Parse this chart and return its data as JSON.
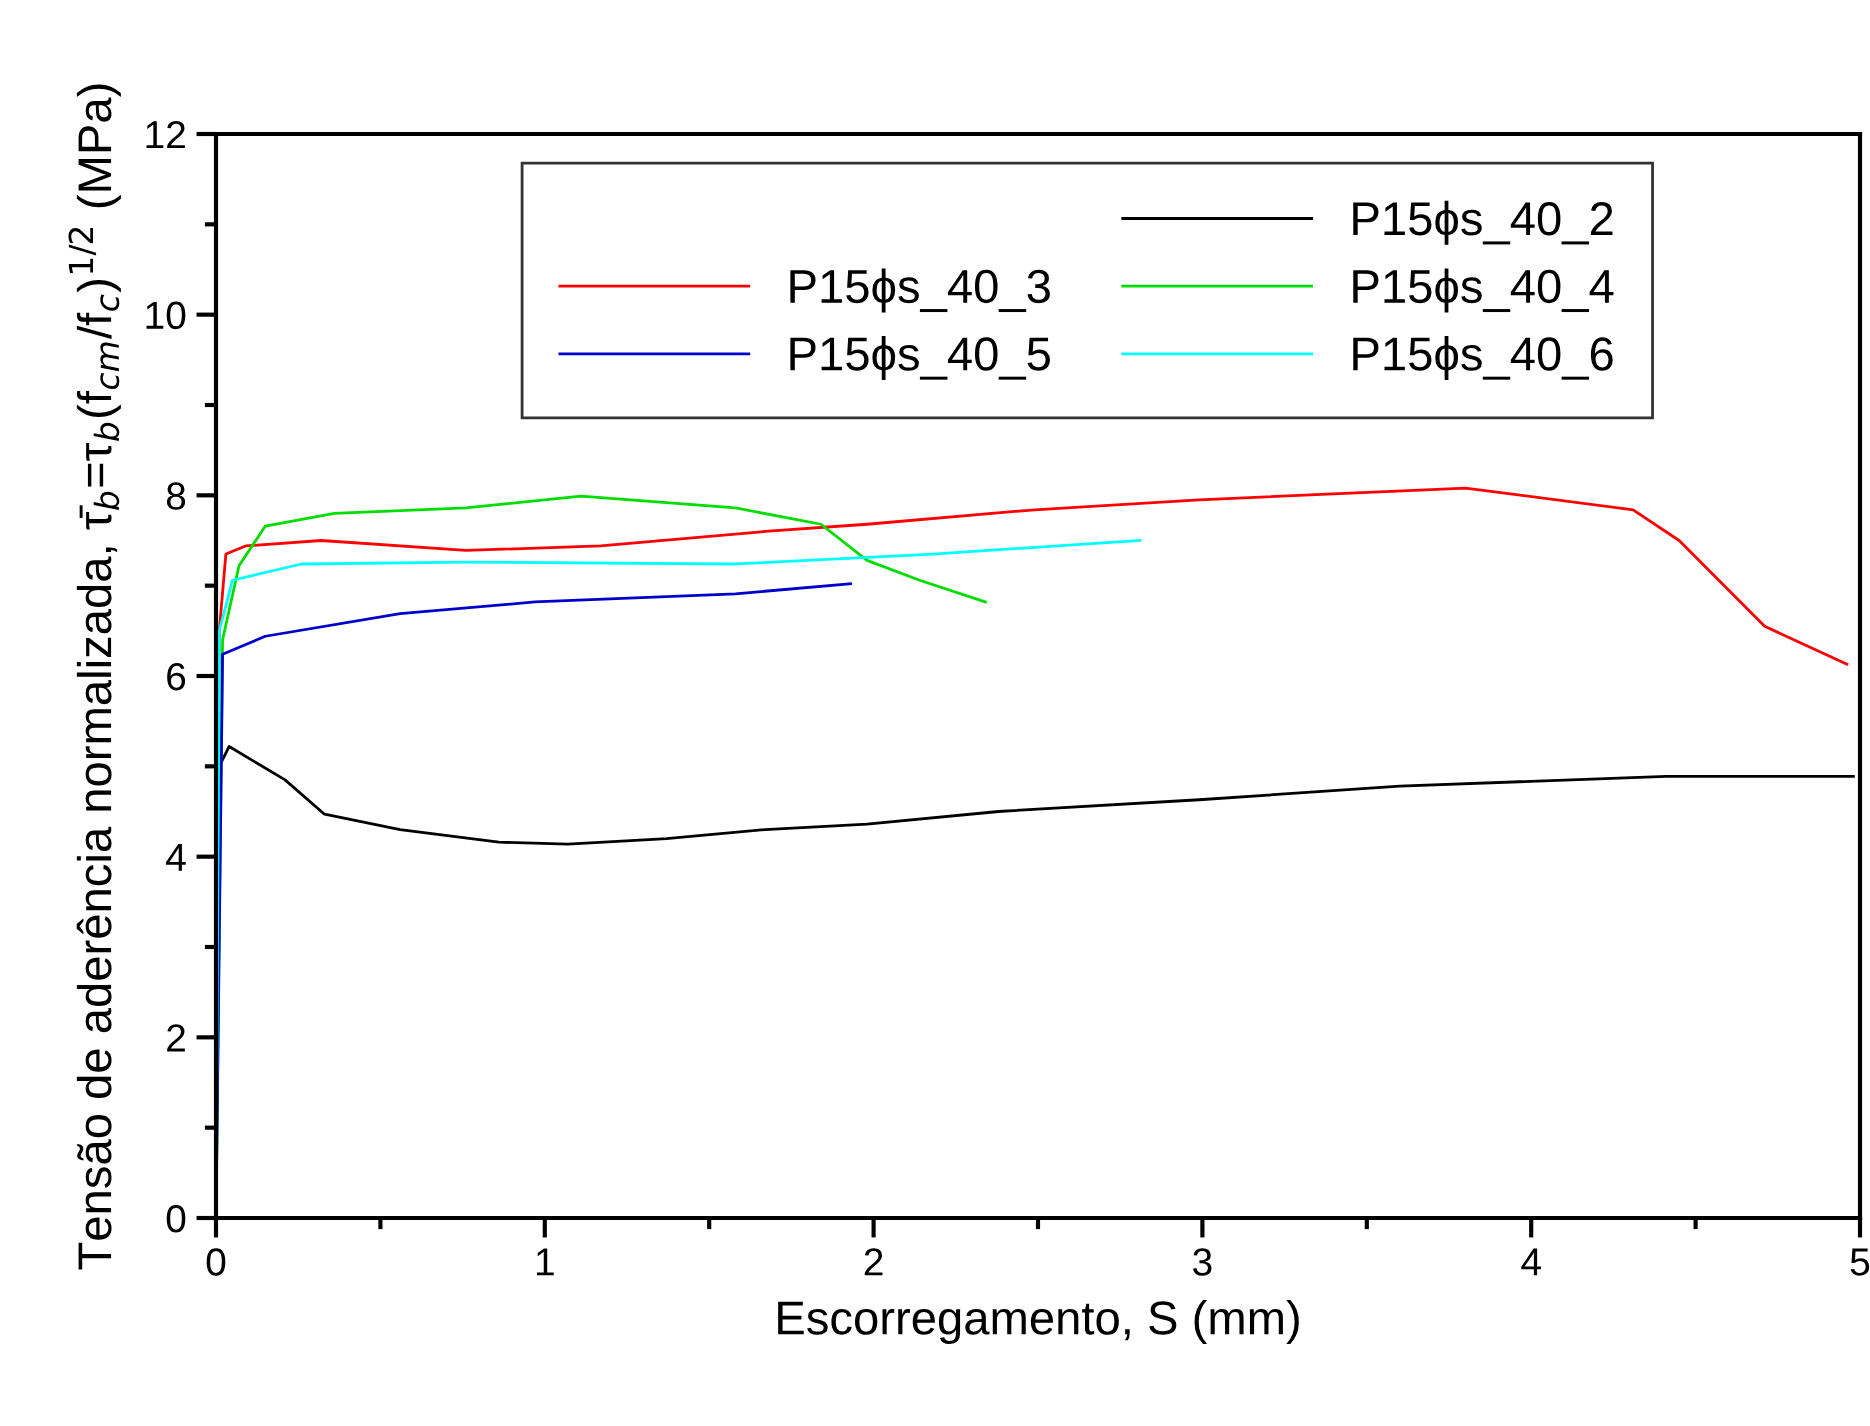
{
  "chart_data": {
    "type": "line",
    "xlabel": "Escorregamento, S (mm)",
    "ylabel": "Tensão de aderência normalizada, τ̄$_{b}$=τ$_{b}$(f$_{cm}$/f$_{c}$)$^{1/2}$ (MPa)",
    "xlim": [
      0,
      5
    ],
    "xticks": [
      0,
      1,
      2,
      3,
      4,
      5
    ],
    "ylim": [
      0,
      12
    ],
    "yticks": [
      0,
      2,
      4,
      6,
      8,
      10,
      12
    ],
    "grid": false,
    "legend": "top",
    "marker": "none",
    "line_style": "solid",
    "series": [
      {
        "name": "P15ϕs_40_2",
        "color": "#000000",
        "x": [
          0,
          0.01,
          0.04,
          0.21,
          0.33,
          0.56,
          0.86,
          1.07,
          1.37,
          1.67,
          1.98,
          2.38,
          2.99,
          3.6,
          4.41,
          4.98
        ],
        "values": [
          0,
          5.0,
          5.22,
          4.85,
          4.47,
          4.3,
          4.16,
          4.14,
          4.2,
          4.3,
          4.36,
          4.5,
          4.63,
          4.78,
          4.89,
          4.89
        ]
      },
      {
        "name": "P15ϕs_40_3",
        "color": "#ff0000",
        "x": [
          0,
          0.01,
          0.03,
          0.09,
          0.32,
          0.76,
          1.17,
          1.67,
          1.98,
          2.49,
          2.99,
          3.8,
          4.31,
          4.45,
          4.71,
          4.96
        ],
        "values": [
          0,
          6.5,
          7.35,
          7.44,
          7.5,
          7.39,
          7.44,
          7.6,
          7.68,
          7.84,
          7.95,
          8.08,
          7.84,
          7.5,
          6.55,
          6.13
        ]
      },
      {
        "name": "P15ϕs_40_4",
        "color": "#00dd00",
        "x": [
          0,
          0.02,
          0.07,
          0.15,
          0.36,
          0.76,
          1.11,
          1.58,
          1.84,
          1.98,
          2.14,
          2.34
        ],
        "values": [
          0,
          6.4,
          7.22,
          7.66,
          7.8,
          7.86,
          7.99,
          7.86,
          7.68,
          7.28,
          7.06,
          6.82
        ]
      },
      {
        "name": "P15ϕs_40_5",
        "color": "#0000cc",
        "x": [
          0,
          0.02,
          0.15,
          0.56,
          0.97,
          1.58,
          1.93
        ],
        "values": [
          0,
          6.24,
          6.44,
          6.69,
          6.82,
          6.91,
          7.02
        ]
      },
      {
        "name": "P15ϕs_40_6",
        "color": "#00ffff",
        "x": [
          0,
          0.01,
          0.05,
          0.26,
          0.76,
          1.58,
          2.18,
          2.81
        ],
        "values": [
          0,
          6.5,
          7.06,
          7.24,
          7.26,
          7.24,
          7.35,
          7.5
        ]
      }
    ]
  }
}
